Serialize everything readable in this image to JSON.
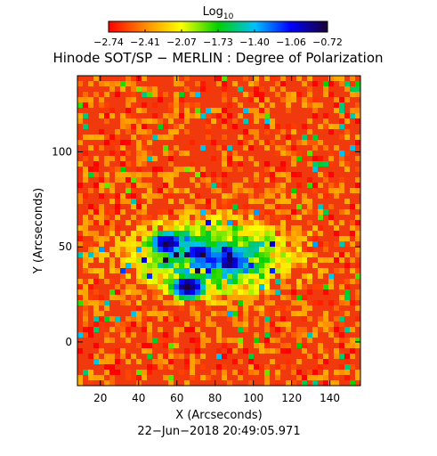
{
  "chart_data": {
    "type": "heatmap",
    "title": "Hinode SOT/SP − MERLIN : Degree of Polarization",
    "colorbar": {
      "label_base": "Log",
      "label_sub": "10",
      "ticks": [
        "−2.74",
        "−2.41",
        "−2.07",
        "−1.73",
        "−1.40",
        "−1.06",
        "−0.72"
      ],
      "range": [
        -2.74,
        -0.72
      ],
      "colors": [
        "#ff0000",
        "#ff8c00",
        "#ffff00",
        "#00d000",
        "#00c0ff",
        "#0000ff",
        "#1a0033"
      ]
    },
    "xlabel": "X (Arcseconds)",
    "ylabel": "Y (Arcseconds)",
    "xlim": [
      8,
      156
    ],
    "ylim": [
      -23,
      140
    ],
    "xticks": [
      20,
      40,
      60,
      80,
      100,
      120,
      140
    ],
    "yticks": [
      0,
      50,
      100
    ],
    "grid": false,
    "timestamp": "22−Jun−2018 20:49:05.971",
    "features": {
      "background_log10": -2.55,
      "umbrae": [
        {
          "x": 55,
          "y": 52,
          "log10": -0.8
        },
        {
          "x": 72,
          "y": 47,
          "log10": -0.9
        },
        {
          "x": 88,
          "y": 42,
          "log10": -0.85
        },
        {
          "x": 66,
          "y": 29,
          "log10": -0.75
        }
      ],
      "active_region_center": {
        "x": 78,
        "y": 45
      }
    }
  }
}
